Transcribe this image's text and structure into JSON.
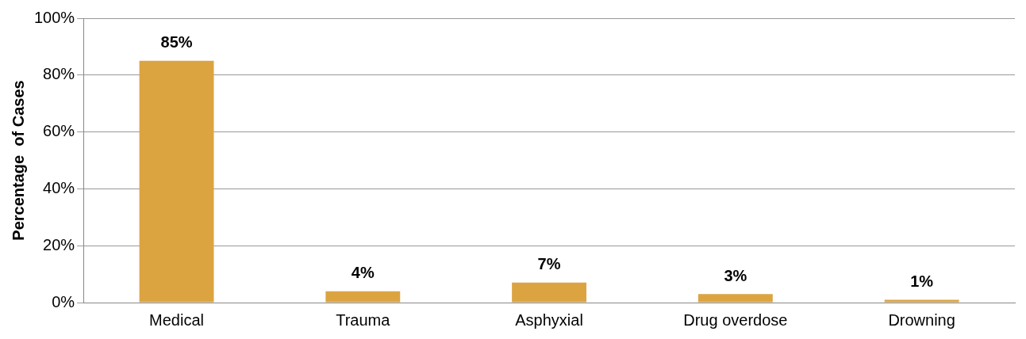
{
  "chart_data": {
    "type": "bar",
    "ylabel": "Percentage  of Cases",
    "categories": [
      "Medical",
      "Trauma",
      "Asphyxial",
      "Drug overdose",
      "Drowning"
    ],
    "values": [
      85,
      4,
      7,
      3,
      1
    ],
    "color": "#dca441",
    "value_labels": [
      "85%",
      "4%",
      "7%",
      "3%",
      "1%"
    ],
    "ylim": [
      0,
      100
    ],
    "yticks": [
      {
        "value": 0,
        "label": "0%"
      },
      {
        "value": 20,
        "label": "20%"
      },
      {
        "value": 40,
        "label": "40%"
      },
      {
        "value": 60,
        "label": "60%"
      },
      {
        "value": 80,
        "label": "80%"
      },
      {
        "value": 100,
        "label": "100%"
      }
    ],
    "grid": "y",
    "legend": false
  }
}
